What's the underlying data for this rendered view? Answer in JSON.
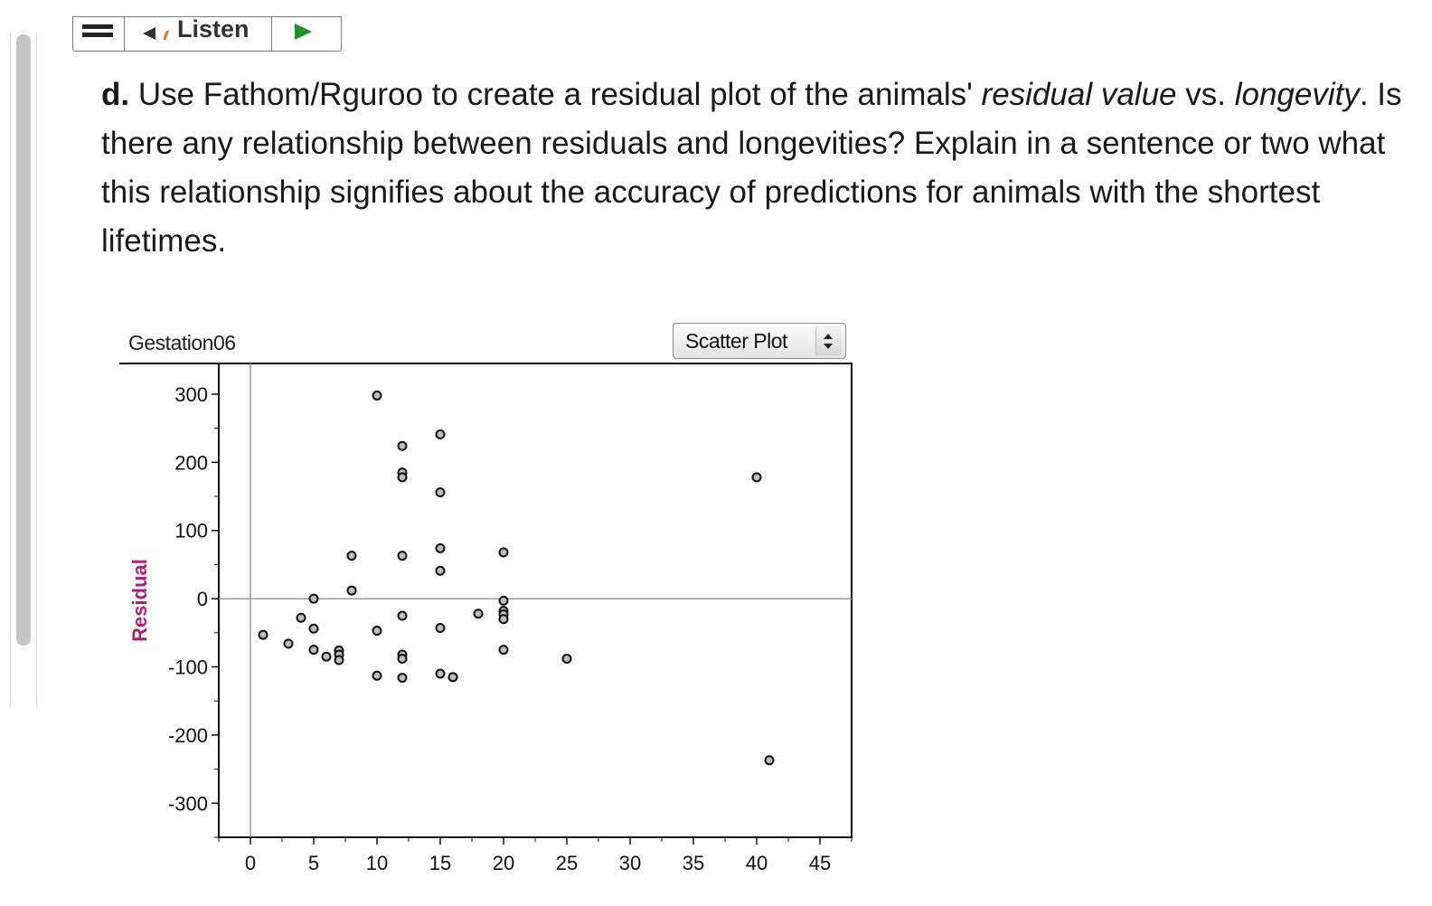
{
  "toolbar": {
    "menu_icon": "hamburger-icon",
    "listen_label": "Listen",
    "speaker_icon": "speaker-icon",
    "play_icon": "play-icon"
  },
  "question": {
    "label": "d.",
    "text_1": " Use Fathom/Rguroo to create a residual plot of the animals' ",
    "em_1": "residual value",
    "text_2": " vs. ",
    "em_2": "longevity",
    "text_3": ". Is there any relationship between residuals and longevities? Explain in a sentence or two what this relationship signifies about the accuracy of predictions for animals with the shortest lifetimes."
  },
  "plot_panel": {
    "title": "Gestation06",
    "plot_type_select": "Scatter Plot"
  },
  "chart_data": {
    "type": "scatter",
    "title": "Gestation06",
    "xlabel": "",
    "ylabel": "Residual",
    "xlim": [
      -2.5,
      47.5
    ],
    "ylim": [
      -350,
      345
    ],
    "xticks": [
      0,
      5,
      10,
      15,
      20,
      25,
      30,
      35,
      40,
      45
    ],
    "yticks": [
      300,
      200,
      100,
      0,
      -100,
      -200,
      -300
    ],
    "reference_lines": {
      "x": 0,
      "y": 0
    },
    "grid": false,
    "points": [
      [
        1,
        -53
      ],
      [
        3,
        -66
      ],
      [
        4,
        -28
      ],
      [
        5,
        0
      ],
      [
        5,
        -44
      ],
      [
        5,
        -75
      ],
      [
        6,
        -85
      ],
      [
        7,
        -76
      ],
      [
        7,
        -82
      ],
      [
        7,
        -90
      ],
      [
        8,
        63
      ],
      [
        8,
        12
      ],
      [
        10,
        298
      ],
      [
        10,
        -47
      ],
      [
        10,
        -113
      ],
      [
        12,
        224
      ],
      [
        12,
        185
      ],
      [
        12,
        178
      ],
      [
        12,
        63
      ],
      [
        12,
        -25
      ],
      [
        12,
        -82
      ],
      [
        12,
        -88
      ],
      [
        12,
        -116
      ],
      [
        15,
        241
      ],
      [
        15,
        156
      ],
      [
        15,
        74
      ],
      [
        15,
        41
      ],
      [
        15,
        -43
      ],
      [
        15,
        -110
      ],
      [
        16,
        -115
      ],
      [
        18,
        -22
      ],
      [
        20,
        68
      ],
      [
        20,
        -3
      ],
      [
        20,
        -18
      ],
      [
        20,
        -23
      ],
      [
        20,
        -30
      ],
      [
        20,
        -75
      ],
      [
        25,
        -88
      ],
      [
        40,
        178
      ],
      [
        41,
        -237
      ]
    ]
  }
}
